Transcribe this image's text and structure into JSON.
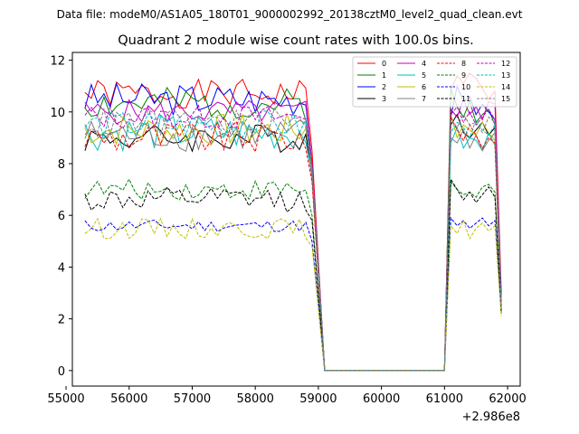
{
  "chart_data": {
    "type": "line",
    "suptitle": "Data file: modeM0/AS1A05_180T01_9000002992_20138cztM0_level2_quad_clean.evt",
    "title": "Quadrant 2 module wise count rates with 100.0s bins.",
    "xlabel": "",
    "ylabel": "",
    "x_offset_label": "+2.986e8",
    "xlim": [
      55100,
      62200
    ],
    "ylim": [
      -0.6,
      12.3
    ],
    "x_ticks": [
      55000,
      56000,
      57000,
      58000,
      59000,
      60000,
      61000,
      62000
    ],
    "y_ticks": [
      0,
      2,
      4,
      6,
      8,
      10,
      12
    ],
    "legend_position": "upper right",
    "legend_ncol": 4,
    "grid": false,
    "segments": [
      {
        "x_start": 55300,
        "x_end": 58900,
        "n": 37
      },
      {
        "x_start": 59100,
        "x_end": 61000,
        "n": 20
      },
      {
        "x_start": 61100,
        "x_end": 61900,
        "n": 9
      }
    ],
    "series": [
      {
        "name": "0",
        "color": "#ff0000",
        "dash": "solid",
        "base": 10.7,
        "amp": 0.35,
        "drop": 8.5,
        "last": 3.0,
        "seed": 1,
        "g2": [
          10.8,
          11.4,
          11.1,
          11.5,
          11.3,
          10.9,
          10.5,
          10.8,
          3.0
        ]
      },
      {
        "name": "1",
        "color": "#008000",
        "dash": "solid",
        "base": 10.3,
        "amp": 0.4,
        "drop": 8.0,
        "last": 2.9,
        "seed": 2,
        "g2": [
          10.9,
          10.2,
          9.8,
          10.4,
          9.6,
          9.9,
          10.1,
          9.5,
          2.9
        ]
      },
      {
        "name": "2",
        "color": "#0000ff",
        "dash": "solid",
        "base": 10.5,
        "amp": 0.4,
        "drop": 8.0,
        "last": 2.7,
        "seed": 3,
        "g2": [
          9.8,
          11.0,
          10.4,
          10.6,
          9.9,
          10.3,
          10.0,
          9.7,
          2.7
        ]
      },
      {
        "name": "3",
        "color": "#000000",
        "dash": "solid",
        "base": 9.0,
        "amp": 0.35,
        "drop": 7.5,
        "last": 2.5,
        "seed": 4,
        "g2": [
          9.5,
          9.9,
          9.2,
          9.0,
          9.3,
          9.6,
          9.1,
          9.4,
          2.5
        ]
      },
      {
        "name": "4",
        "color": "#bf00bf",
        "dash": "solid",
        "base": 10.0,
        "amp": 0.3,
        "drop": 8.0,
        "last": 2.6,
        "seed": 5,
        "g2": [
          10.1,
          9.8,
          10.5,
          9.9,
          10.2,
          9.7,
          10.4,
          10.3,
          2.6
        ]
      },
      {
        "name": "5",
        "color": "#00bfbf",
        "dash": "solid",
        "base": 9.2,
        "amp": 0.45,
        "drop": 7.6,
        "last": 2.5,
        "seed": 6,
        "g2": [
          8.8,
          9.4,
          8.6,
          9.0,
          8.9,
          8.5,
          9.2,
          8.7,
          2.5
        ]
      },
      {
        "name": "6",
        "color": "#bfbf00",
        "dash": "solid",
        "base": 9.3,
        "amp": 0.4,
        "drop": 7.8,
        "last": 2.4,
        "seed": 7,
        "g2": [
          9.9,
          9.0,
          9.5,
          9.3,
          9.1,
          9.6,
          9.2,
          8.9,
          2.4
        ]
      },
      {
        "name": "7",
        "color": "#808080",
        "dash": "solid",
        "base": 9.1,
        "amp": 0.4,
        "drop": 7.5,
        "last": 2.4,
        "seed": 8,
        "g2": [
          9.0,
          8.8,
          9.3,
          8.6,
          9.1,
          8.5,
          8.9,
          9.2,
          2.4
        ]
      },
      {
        "name": "8",
        "color": "#ff0000",
        "dash": "dashed",
        "base": 9.0,
        "amp": 0.4,
        "drop": 7.3,
        "last": 2.3,
        "seed": 9,
        "g2": [
          9.8,
          9.3,
          8.9,
          9.5,
          9.1,
          8.6,
          9.0,
          8.8,
          2.3
        ]
      },
      {
        "name": "9",
        "color": "#008000",
        "dash": "dashed",
        "base": 7.0,
        "amp": 0.25,
        "drop": 6.0,
        "last": 2.2,
        "seed": 10,
        "g2": [
          7.3,
          7.0,
          6.8,
          6.9,
          6.7,
          7.1,
          7.2,
          6.9,
          2.2
        ]
      },
      {
        "name": "10",
        "color": "#0000ff",
        "dash": "dashed",
        "base": 5.6,
        "amp": 0.15,
        "drop": 5.0,
        "last": 2.2,
        "seed": 11,
        "g2": [
          5.9,
          5.6,
          5.8,
          5.5,
          5.7,
          5.9,
          5.6,
          5.8,
          2.2
        ]
      },
      {
        "name": "11",
        "color": "#000000",
        "dash": "dashed",
        "base": 6.6,
        "amp": 0.3,
        "drop": 5.8,
        "last": 2.2,
        "seed": 12,
        "g2": [
          7.4,
          7.0,
          6.6,
          6.9,
          6.5,
          6.8,
          7.1,
          6.7,
          2.2
        ]
      },
      {
        "name": "12",
        "color": "#bf00bf",
        "dash": "dashed",
        "base": 9.8,
        "amp": 0.3,
        "drop": 8.0,
        "last": 2.5,
        "seed": 13,
        "g2": [
          9.9,
          10.2,
          9.6,
          10.0,
          9.5,
          9.8,
          10.1,
          9.7,
          2.5
        ]
      },
      {
        "name": "13",
        "color": "#00bfbf",
        "dash": "dashed",
        "base": 9.5,
        "amp": 0.35,
        "drop": 7.8,
        "last": 2.4,
        "seed": 14,
        "g2": [
          9.2,
          9.6,
          9.4,
          9.0,
          9.7,
          9.3,
          9.1,
          9.5,
          2.4
        ]
      },
      {
        "name": "14",
        "color": "#bfbf00",
        "dash": "dashed",
        "base": 5.5,
        "amp": 0.25,
        "drop": 4.8,
        "last": 2.1,
        "seed": 15,
        "g2": [
          5.6,
          5.3,
          5.8,
          5.1,
          5.5,
          5.7,
          5.4,
          5.6,
          2.1
        ]
      },
      {
        "name": "15",
        "color": "#808080",
        "dash": "dashed",
        "base": 9.6,
        "amp": 0.35,
        "drop": 7.8,
        "last": 2.4,
        "seed": 16,
        "g2": [
          9.7,
          9.4,
          9.9,
          9.5,
          9.6,
          9.2,
          9.8,
          9.6,
          2.4
        ]
      }
    ]
  }
}
